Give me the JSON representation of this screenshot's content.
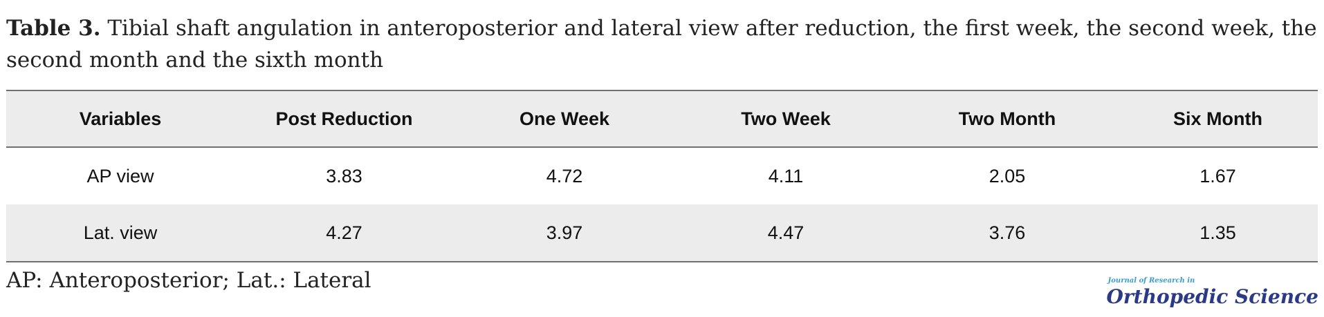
{
  "caption": {
    "lead": "Table 3.",
    "text": " Tibial shaft angulation in anteroposterior and lateral view after reduction, the first week, the second week, the second month and the sixth month"
  },
  "table": {
    "headers": [
      "Variables",
      "Post Reduction",
      "One Week",
      "Two Week",
      "Two Month",
      "Six Month"
    ],
    "rows": [
      [
        "AP view",
        "3.83",
        "4.72",
        "4.11",
        "2.05",
        "1.67"
      ],
      [
        "Lat. view",
        "4.27",
        "3.97",
        "4.47",
        "3.76",
        "1.35"
      ]
    ]
  },
  "footnote": "AP: Anteroposterior; Lat.: Lateral",
  "logo": {
    "small_text": "Journal of Research in",
    "big_text": "Orthopedic Science"
  }
}
